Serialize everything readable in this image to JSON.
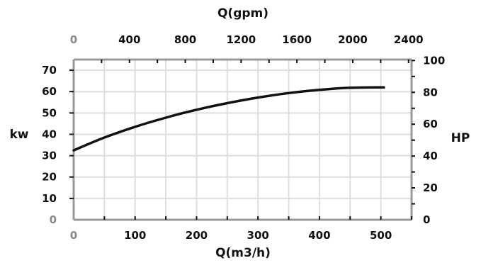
{
  "chart_data": {
    "type": "line",
    "x_axis_bottom": {
      "label": "Q(m3/h)",
      "ticks": [
        0,
        100,
        200,
        300,
        400,
        500
      ],
      "tick_labels": [
        "0",
        "100",
        "200",
        "300",
        "400",
        "500"
      ],
      "range": [
        0,
        550
      ]
    },
    "x_axis_top": {
      "label": "Q(gpm)",
      "ticks": [
        0,
        400,
        800,
        1200,
        1600,
        2000,
        2400
      ],
      "tick_labels": [
        "0",
        "400",
        "800",
        "1200",
        "1600",
        "2000",
        "2400"
      ],
      "range": [
        0,
        2421.6
      ]
    },
    "y_axis_left": {
      "label": "kw",
      "ticks": [
        0,
        10,
        20,
        30,
        40,
        50,
        60,
        70
      ],
      "tick_labels": [
        "0",
        "10",
        "20",
        "30",
        "40",
        "50",
        "60",
        "70"
      ],
      "range": [
        0,
        75
      ]
    },
    "y_axis_right": {
      "label": "HP",
      "ticks": [
        0,
        20,
        40,
        60,
        80,
        100
      ],
      "tick_labels": [
        "0",
        "20",
        "40",
        "60",
        "80",
        "100"
      ],
      "range": [
        0,
        100.6
      ]
    },
    "grid": true,
    "series": [
      {
        "color": "#111111",
        "x": [
          0,
          50,
          100,
          150,
          200,
          250,
          300,
          350,
          400,
          450,
          505
        ],
        "y": [
          32.5,
          38.5,
          43.5,
          47.8,
          51.5,
          54.6,
          57.2,
          59.3,
          60.8,
          61.8,
          62.0
        ]
      }
    ],
    "colors": {
      "axis": "#999999",
      "grid": "#dedede",
      "line": "#111111"
    }
  }
}
